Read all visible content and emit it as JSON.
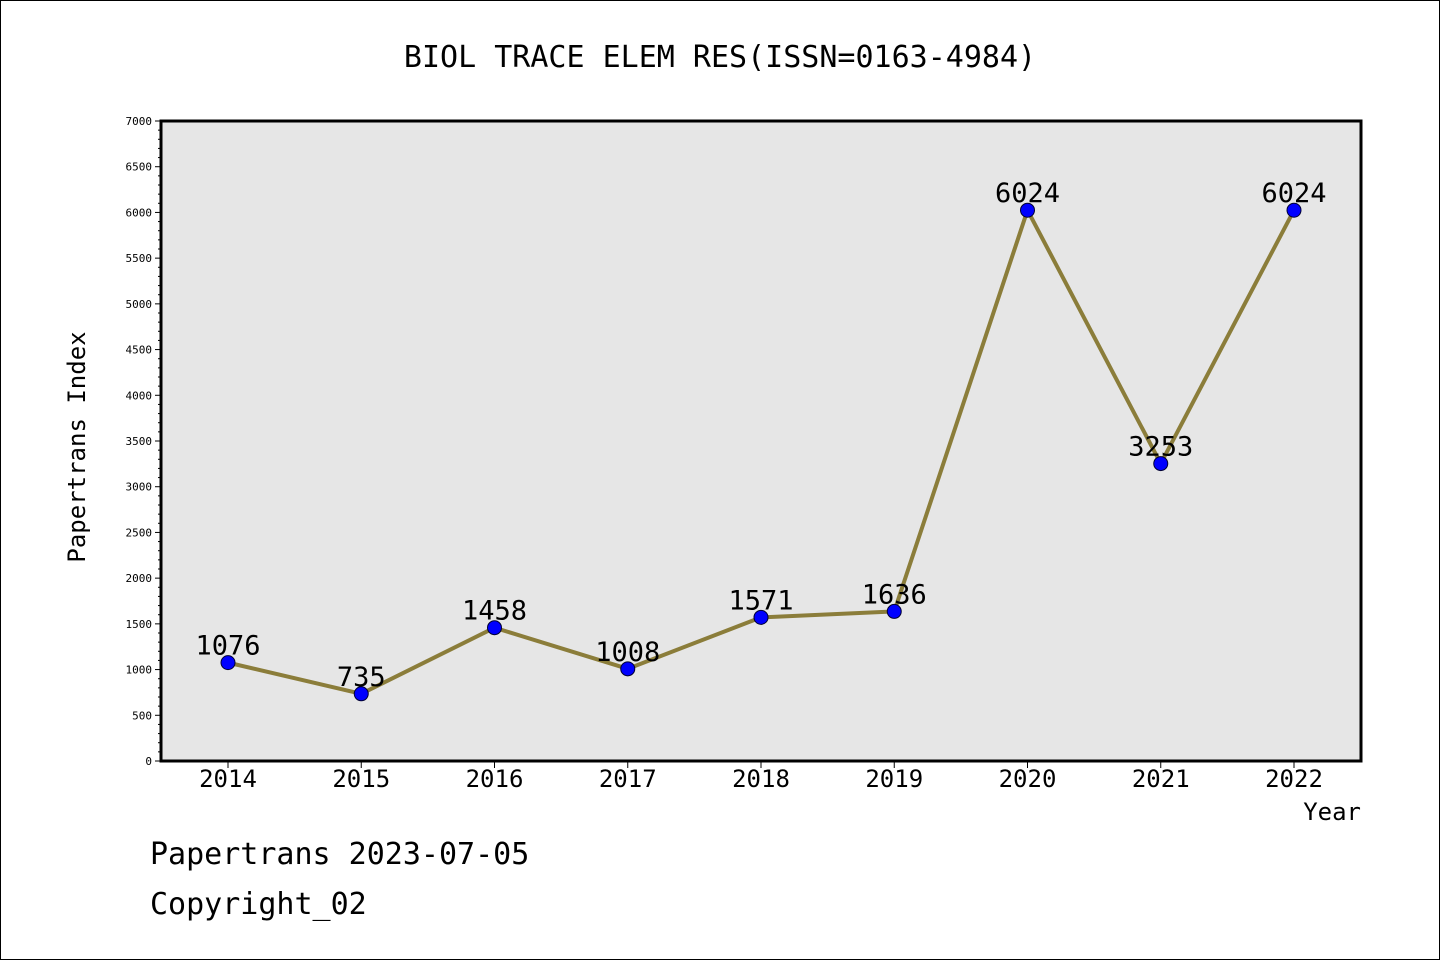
{
  "chart_data": {
    "type": "line",
    "title": "BIOL TRACE ELEM RES(ISSN=0163-4984)",
    "xlabel": "Year",
    "ylabel": "Papertrans Index",
    "categories": [
      "2014",
      "2015",
      "2016",
      "2017",
      "2018",
      "2019",
      "2020",
      "2021",
      "2022"
    ],
    "series": [
      {
        "values": [
          1076,
          735,
          1458,
          1008,
          1571,
          1636,
          6024,
          3253,
          6024
        ]
      }
    ],
    "data_labels": [
      "1076",
      "735",
      "1458",
      "1008",
      "1571",
      "1636",
      "6024",
      "3253",
      "6024"
    ],
    "ylim": [
      0,
      7000
    ],
    "y_ticks": [
      "0",
      "500",
      "1000",
      "1500",
      "2000",
      "2500",
      "3000",
      "3500",
      "4000",
      "4500",
      "5000",
      "5500",
      "6000",
      "6500",
      "7000"
    ],
    "grid": false,
    "colors": {
      "line": "#8b7d3a",
      "marker": "#0000ff",
      "plot_background": "#e6e6e6"
    }
  },
  "footer": {
    "line1": "Papertrans 2023-07-05",
    "line2": "Copyright_02"
  }
}
